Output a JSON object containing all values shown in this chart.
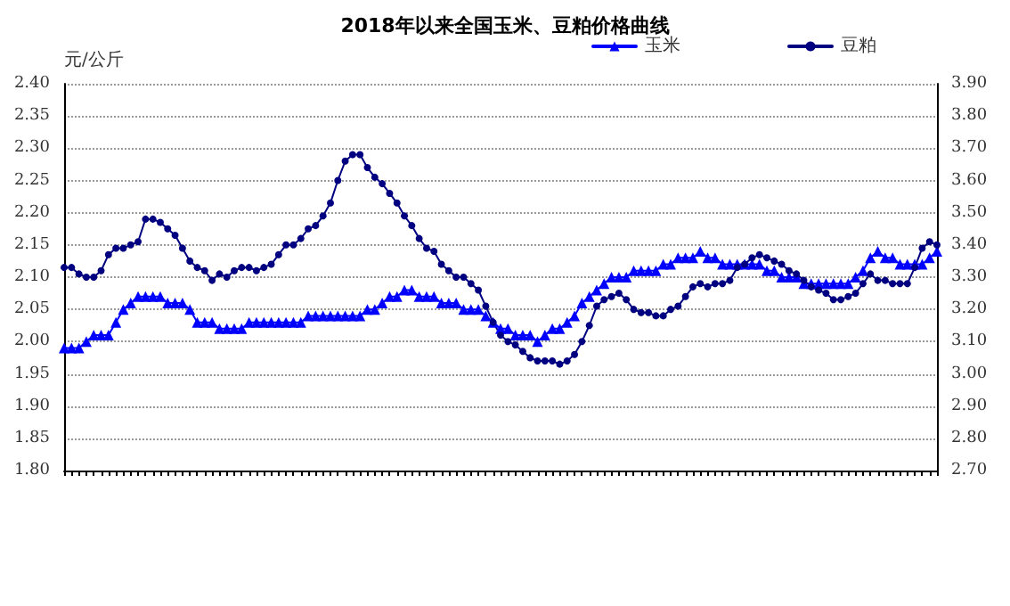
{
  "chart_data": {
    "type": "line",
    "title": "2018年以来全国玉米、豆粕价格曲线",
    "ylabel": "元/公斤",
    "categories": [
      null,
      null,
      null,
      null,
      null,
      null,
      null,
      null,
      null,
      null,
      null,
      null,
      null,
      null,
      null,
      null,
      null,
      null,
      null,
      null,
      null,
      null,
      null,
      null,
      null,
      null,
      null,
      null,
      null,
      null,
      null,
      null,
      null,
      null,
      null,
      null,
      null,
      null,
      null,
      null,
      null,
      null,
      null,
      null,
      null,
      null,
      null,
      null,
      null,
      null,
      null,
      null,
      null,
      null,
      null,
      null,
      null,
      null,
      null,
      null,
      null,
      null,
      null,
      null,
      null,
      null,
      null,
      null,
      null,
      null,
      null,
      null,
      null,
      null,
      null,
      null,
      null,
      null,
      null,
      null,
      null,
      null,
      null,
      null,
      null,
      null,
      null,
      null,
      null,
      null,
      null,
      null,
      null,
      null,
      null,
      null,
      null,
      null,
      null,
      null,
      null,
      null,
      null,
      null,
      null,
      null,
      null,
      null,
      null,
      null,
      null,
      null,
      null,
      null,
      null,
      null,
      null,
      null,
      null
    ],
    "series": [
      {
        "name": "玉米",
        "color": "#0000ff",
        "marker": "triangle",
        "values": [
          1.99,
          1.99,
          1.99,
          2.0,
          2.01,
          2.01,
          2.01,
          2.03,
          2.05,
          2.06,
          2.07,
          2.07,
          2.07,
          2.07,
          2.06,
          2.06,
          2.06,
          2.05,
          2.03,
          2.03,
          2.03,
          2.02,
          2.02,
          2.02,
          2.02,
          2.03,
          2.03,
          2.03,
          2.03,
          2.03,
          2.03,
          2.03,
          2.03,
          2.04,
          2.04,
          2.04,
          2.04,
          2.04,
          2.04,
          2.04,
          2.04,
          2.05,
          2.05,
          2.06,
          2.07,
          2.07,
          2.08,
          2.08,
          2.07,
          2.07,
          2.07,
          2.06,
          2.06,
          2.06,
          2.05,
          2.05,
          2.05,
          2.04,
          2.03,
          2.02,
          2.02,
          2.01,
          2.01,
          2.01,
          2.0,
          2.01,
          2.02,
          2.02,
          2.03,
          2.04,
          2.06,
          2.07,
          2.08,
          2.09,
          2.1,
          2.1,
          2.1,
          2.11,
          2.11,
          2.11,
          2.11,
          2.12,
          2.12,
          2.13,
          2.13,
          2.13,
          2.14,
          2.13,
          2.13,
          2.12,
          2.12,
          2.12,
          2.12,
          2.12,
          2.12,
          2.11,
          2.11,
          2.1,
          2.1,
          2.1,
          2.09,
          2.09,
          2.09,
          2.09,
          2.09,
          2.09,
          2.09,
          2.1,
          2.11,
          2.13,
          2.14,
          2.13,
          2.13,
          2.12,
          2.12,
          2.12,
          2.12,
          2.13,
          2.14
        ]
      },
      {
        "name": "豆粕",
        "color": "#000080",
        "marker": "circle",
        "axis": "y2",
        "values": [
          3.33,
          3.33,
          3.31,
          3.3,
          3.3,
          3.32,
          3.37,
          3.39,
          3.39,
          3.4,
          3.41,
          3.48,
          3.48,
          3.47,
          3.45,
          3.43,
          3.39,
          3.35,
          3.33,
          3.32,
          3.29,
          3.31,
          3.3,
          3.32,
          3.33,
          3.33,
          3.32,
          3.33,
          3.34,
          3.37,
          3.4,
          3.4,
          3.42,
          3.45,
          3.46,
          3.49,
          3.53,
          3.6,
          3.66,
          3.68,
          3.68,
          3.64,
          3.61,
          3.59,
          3.56,
          3.53,
          3.49,
          3.46,
          3.42,
          3.39,
          3.38,
          3.34,
          3.32,
          3.3,
          3.3,
          3.28,
          3.26,
          3.21,
          3.16,
          3.12,
          3.1,
          3.09,
          3.07,
          3.05,
          3.04,
          3.04,
          3.04,
          3.03,
          3.04,
          3.06,
          3.1,
          3.15,
          3.21,
          3.23,
          3.24,
          3.25,
          3.23,
          3.2,
          3.19,
          3.19,
          3.18,
          3.18,
          3.2,
          3.21,
          3.24,
          3.27,
          3.28,
          3.27,
          3.28,
          3.28,
          3.29,
          3.33,
          3.34,
          3.36,
          3.37,
          3.36,
          3.35,
          3.34,
          3.32,
          3.31,
          3.29,
          3.27,
          3.26,
          3.25,
          3.23,
          3.23,
          3.24,
          3.25,
          3.28,
          3.31,
          3.29,
          3.29,
          3.28,
          3.28,
          3.28,
          3.33,
          3.39,
          3.41,
          3.4
        ]
      }
    ],
    "ylim": [
      1.8,
      2.4
    ],
    "yticks": [
      {
        "value": 1.8,
        "label": "1.80"
      },
      {
        "value": 1.85,
        "label": "1.85"
      },
      {
        "value": 1.9,
        "label": "1.90"
      },
      {
        "value": 1.95,
        "label": "1.95"
      },
      {
        "value": 2.0,
        "label": "2.00"
      },
      {
        "value": 2.05,
        "label": "2.05"
      },
      {
        "value": 2.1,
        "label": "2.10"
      },
      {
        "value": 2.15,
        "label": "2.15"
      },
      {
        "value": 2.2,
        "label": "2.20"
      },
      {
        "value": 2.25,
        "label": "2.25"
      },
      {
        "value": 2.3,
        "label": "2.30"
      },
      {
        "value": 2.35,
        "label": "2.35"
      },
      {
        "value": 2.4,
        "label": "2.40"
      }
    ],
    "y2lim": [
      2.7,
      3.9
    ],
    "y2ticks": [
      {
        "value": 2.7,
        "label": "2.70"
      },
      {
        "value": 2.8,
        "label": "2.80"
      },
      {
        "value": 2.9,
        "label": "2.90"
      },
      {
        "value": 3.0,
        "label": "3.00"
      },
      {
        "value": 3.1,
        "label": "3.10"
      },
      {
        "value": 3.2,
        "label": "3.20"
      },
      {
        "value": 3.3,
        "label": "3.30"
      },
      {
        "value": 3.4,
        "label": "3.40"
      },
      {
        "value": 3.5,
        "label": "3.50"
      },
      {
        "value": 3.6,
        "label": "3.60"
      },
      {
        "value": 3.7,
        "label": "3.70"
      },
      {
        "value": 3.8,
        "label": "3.80"
      },
      {
        "value": 3.9,
        "label": "3.90"
      }
    ],
    "grid": "y",
    "legend": "top right",
    "line_style": "solid"
  }
}
